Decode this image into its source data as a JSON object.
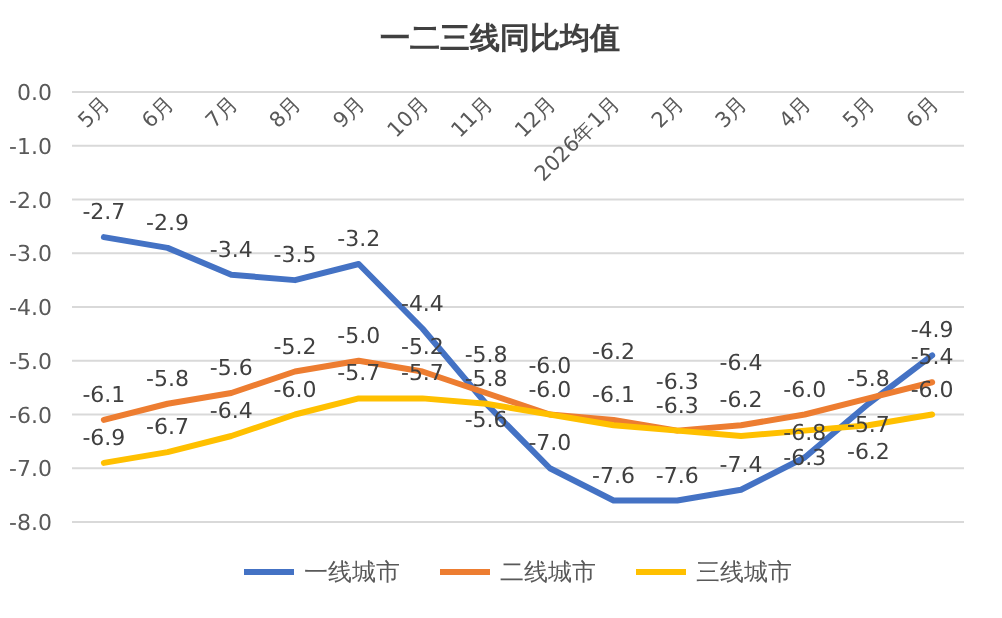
{
  "chart_data": {
    "type": "line",
    "title": "一二三线同比均值",
    "categories": [
      "5月",
      "6月",
      "7月",
      "8月",
      "9月",
      "10月",
      "11月",
      "12月",
      "2026年1月",
      "2月",
      "3月",
      "4月",
      "5月",
      "6月"
    ],
    "series": [
      {
        "name": "一线城市",
        "color": "#4472c4",
        "values": [
          -2.7,
          -2.9,
          -3.4,
          -3.5,
          -3.2,
          -4.4,
          -5.8,
          -7.0,
          -7.6,
          -7.6,
          -7.4,
          -6.8,
          -5.8,
          -4.9
        ],
        "value_labels": [
          "-2.7",
          "-2.9",
          "-3.4",
          "-3.5",
          "-3.2",
          "-4.4",
          "-5.8",
          "-7.0",
          "-7.6",
          "-7.6",
          "-7.4",
          "-6.8",
          "-5.8",
          "-4.9"
        ]
      },
      {
        "name": "二线城市",
        "color": "#ed7d31",
        "values": [
          -6.1,
          -5.8,
          -5.6,
          -5.2,
          -5.0,
          -5.2,
          -5.6,
          -6.0,
          -6.1,
          -6.3,
          -6.2,
          -6.0,
          -5.7,
          -5.4
        ],
        "value_labels": [
          "-6.1",
          "-5.8",
          "-5.6",
          "-5.2",
          "-5.0",
          "-5.2",
          "-5.6",
          "-6.0",
          "-6.1",
          "-6.3",
          "-6.2",
          "-6.0",
          "-5.7",
          "-5.4"
        ]
      },
      {
        "name": "三线城市",
        "color": "#ffc000",
        "values": [
          -6.9,
          -6.7,
          -6.4,
          -6.0,
          -5.7,
          -5.7,
          -5.8,
          -6.0,
          -6.2,
          -6.3,
          -6.4,
          -6.3,
          -6.2,
          -6.0
        ],
        "value_labels": [
          "-6.9",
          "-6.7",
          "-6.4",
          "-6.0",
          "-5.7",
          "-5.7",
          "-5.8",
          "-6.0",
          "-6.2",
          "-6.3",
          "-6.4",
          "-6.3",
          "-6.2",
          "-6.0"
        ]
      }
    ],
    "ylim": [
      -8,
      0
    ],
    "yticks": [
      {
        "value": 0,
        "label": "0.0"
      },
      {
        "value": -1,
        "label": "-1.0"
      },
      {
        "value": -2,
        "label": "-2.0"
      },
      {
        "value": -3,
        "label": "-3.0"
      },
      {
        "value": -4,
        "label": "-4.0"
      },
      {
        "value": -5,
        "label": "-5.0"
      },
      {
        "value": -6,
        "label": "-6.0"
      },
      {
        "value": -7,
        "label": "-7.0"
      },
      {
        "value": -8,
        "label": "-8.0"
      }
    ],
    "grid": "y",
    "legend": "bottom",
    "marker": "none",
    "line_style": "solid"
  }
}
